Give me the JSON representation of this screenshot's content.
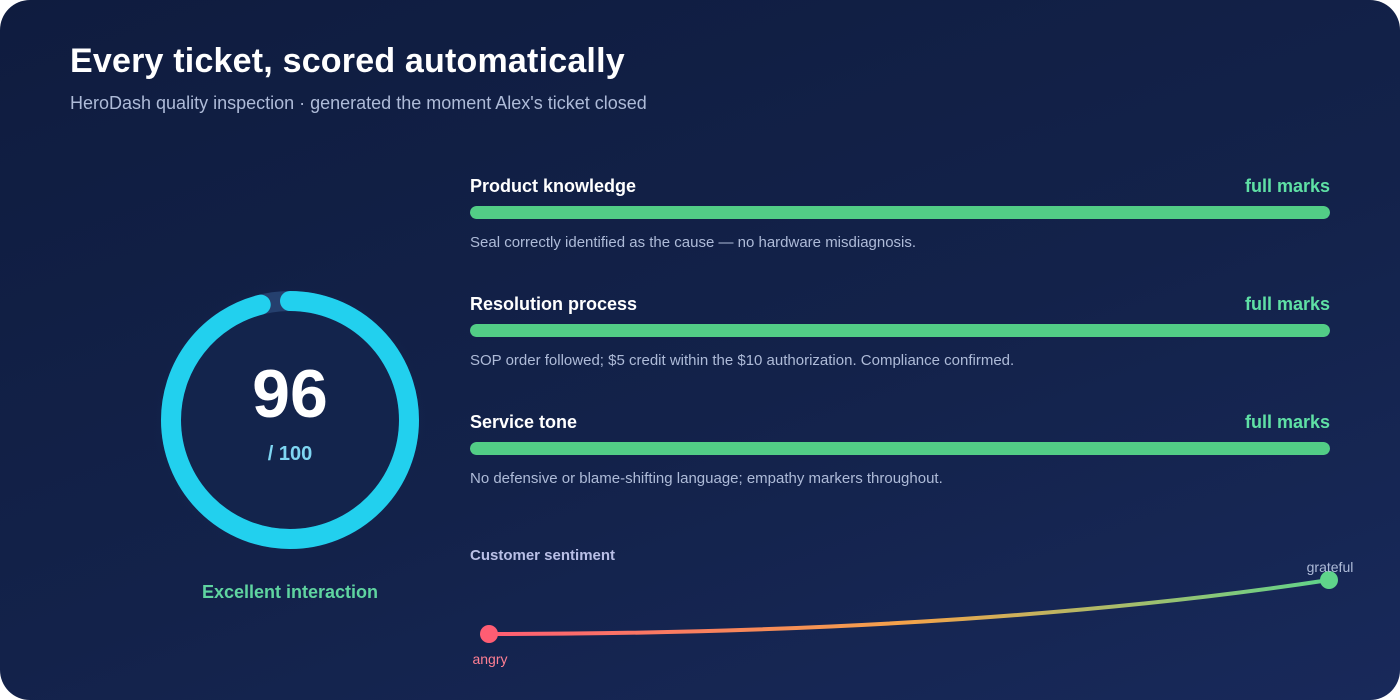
{
  "header": {
    "title": "Every ticket, scored automatically",
    "subtitle": "HeroDash quality inspection · generated the moment Alex's ticket closed"
  },
  "gauge": {
    "score": "96",
    "max_label": "/ 100",
    "fraction": 0.96,
    "verdict": "Excellent interaction",
    "color": "#22d0ee"
  },
  "criteria": [
    {
      "name": "Product knowledge",
      "verdict": "full marks",
      "fraction": 1.0,
      "note": "Seal correctly identified as the cause — no hardware misdiagnosis."
    },
    {
      "name": "Resolution process",
      "verdict": "full marks",
      "fraction": 1.0,
      "note": "SOP order followed; $5 credit within the $10 authorization. Compliance confirmed."
    },
    {
      "name": "Service tone",
      "verdict": "full marks",
      "fraction": 1.0,
      "note": "No defensive or blame-shifting language; empathy markers throughout."
    }
  ],
  "sentiment": {
    "label": "Customer sentiment",
    "start_label": "angry",
    "end_label": "grateful",
    "start_color": "#ff5d73",
    "mid_color": "#f3a34a",
    "end_color": "#5fd48b"
  }
}
